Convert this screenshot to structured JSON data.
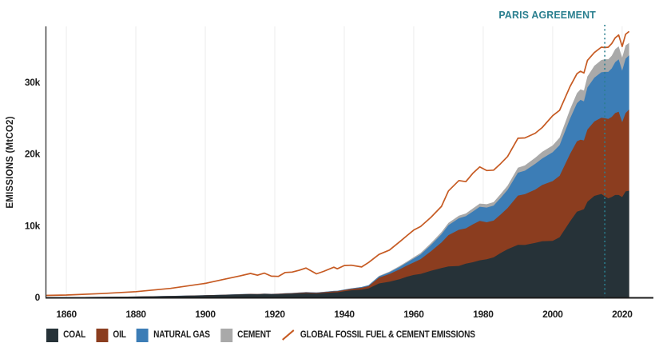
{
  "chart": {
    "y_axis_title": "EMISSIONS (MtCO2)",
    "annotation_label": "PARIS AGREEMENT",
    "annotation_year": 2015,
    "colors": {
      "coal": "#263238",
      "oil": "#8b3d1f",
      "natural_gas": "#3c7db6",
      "cement": "#a9a9a9",
      "total_line": "#c65a22",
      "paris_accent": "#2a7f8f",
      "grid": "#ececec",
      "axis": "#1c1c1c",
      "tick_text": "#1c1c1c"
    }
  },
  "legend": {
    "items": [
      {
        "label": "COAL",
        "swatch": "square",
        "color": "#263238"
      },
      {
        "label": "OIL",
        "swatch": "square",
        "color": "#8b3d1f"
      },
      {
        "label": "NATURAL GAS",
        "swatch": "square",
        "color": "#3c7db6"
      },
      {
        "label": "CEMENT",
        "swatch": "square",
        "color": "#a9a9a9"
      },
      {
        "label": "GLOBAL FOSSIL FUEL & CEMENT EMISSIONS",
        "swatch": "line",
        "color": "#c65a22"
      }
    ]
  },
  "chart_data": {
    "type": "area",
    "stacked": true,
    "title": "",
    "xlabel": "",
    "ylabel": "EMISSIONS (MtCO2)",
    "xlim": [
      1854,
      2029
    ],
    "ylim": [
      0,
      37800
    ],
    "x_ticks": [
      1860,
      1880,
      1900,
      1920,
      1940,
      1960,
      1980,
      2000,
      2020
    ],
    "y_ticks": [
      {
        "value": 0,
        "label": "0"
      },
      {
        "value": 10000,
        "label": "10k"
      },
      {
        "value": 20000,
        "label": "20k"
      },
      {
        "value": 30000,
        "label": "30k"
      }
    ],
    "grid": "vertical-only",
    "legend_position": "bottom",
    "annotation": {
      "label": "PARIS AGREEMENT",
      "x": 2015,
      "style": "dashed-vertical-line",
      "color": "#2a7f8f"
    },
    "x": [
      1854,
      1860,
      1870,
      1880,
      1890,
      1900,
      1905,
      1910,
      1913,
      1915,
      1917,
      1919,
      1921,
      1923,
      1925,
      1927,
      1929,
      1932,
      1934,
      1937,
      1938,
      1940,
      1942,
      1945,
      1947,
      1950,
      1953,
      1956,
      1958,
      1960,
      1962,
      1965,
      1968,
      1970,
      1973,
      1975,
      1977,
      1979,
      1981,
      1983,
      1985,
      1987,
      1990,
      1992,
      1995,
      1997,
      2000,
      2002,
      2005,
      2007,
      2008,
      2009,
      2010,
      2012,
      2014,
      2015,
      2016,
      2017,
      2018,
      2019,
      2020,
      2021,
      2022
    ],
    "series": [
      {
        "name": "COAL",
        "type": "area",
        "color": "#263238",
        "values": [
          20,
          40,
          65,
          115,
          190,
          285,
          350,
          420,
          460,
          440,
          470,
          445,
          450,
          500,
          520,
          560,
          600,
          550,
          610,
          700,
          710,
          860,
          990,
          1090,
          1260,
          1950,
          2190,
          2550,
          2890,
          3130,
          3280,
          3720,
          4090,
          4310,
          4390,
          4720,
          4910,
          5170,
          5320,
          5590,
          6190,
          6720,
          7330,
          7320,
          7610,
          7840,
          7890,
          8390,
          10590,
          11960,
          12130,
          12310,
          13340,
          14160,
          14430,
          14110,
          13820,
          14010,
          14280,
          14280,
          13990,
          14780,
          14870
        ]
      },
      {
        "name": "OIL",
        "type": "area",
        "color": "#8b3d1f",
        "values": [
          0,
          2,
          4,
          10,
          12,
          14,
          15,
          20,
          26,
          28,
          33,
          38,
          52,
          63,
          70,
          84,
          100,
          99,
          113,
          144,
          151,
          172,
          190,
          259,
          315,
          810,
          1070,
          1390,
          1550,
          1750,
          2060,
          2740,
          3570,
          4380,
          5040,
          4910,
          5280,
          5500,
          5160,
          5120,
          5360,
          5740,
          6880,
          7070,
          7430,
          7840,
          8330,
          8570,
          9410,
          9810,
          9870,
          9590,
          10080,
          10380,
          10630,
          10880,
          11070,
          11170,
          11430,
          11620,
          10440,
          10930,
          11330
        ]
      },
      {
        "name": "NATURAL GAS",
        "type": "area",
        "color": "#3c7db6",
        "values": [
          0,
          0,
          1,
          3,
          6,
          8,
          10,
          12,
          14,
          14,
          16,
          16,
          20,
          24,
          27,
          32,
          40,
          37,
          43,
          55,
          58,
          65,
          75,
          95,
          115,
          170,
          245,
          335,
          410,
          540,
          645,
          870,
          1150,
          1390,
          1610,
          1700,
          1790,
          1970,
          2050,
          2100,
          2320,
          2540,
          3190,
          3280,
          3590,
          3700,
          4030,
          4280,
          4930,
          5320,
          5550,
          5450,
          5860,
          6110,
          6340,
          6470,
          6570,
          6760,
          7090,
          7290,
          7190,
          7580,
          7580
        ]
      },
      {
        "name": "CEMENT",
        "type": "area",
        "color": "#a9a9a9",
        "values": [
          0,
          0,
          0,
          0,
          0,
          0,
          0,
          5,
          5,
          5,
          6,
          6,
          7,
          8,
          9,
          10,
          11,
          10,
          12,
          15,
          16,
          17,
          19,
          16,
          25,
          70,
          95,
          125,
          150,
          185,
          212,
          260,
          297,
          320,
          365,
          375,
          415,
          455,
          470,
          495,
          545,
          590,
          690,
          740,
          860,
          930,
          950,
          1050,
          1280,
          1400,
          1460,
          1500,
          1540,
          1650,
          1710,
          1760,
          1760,
          1760,
          1820,
          1820,
          1820,
          1870,
          1720
        ]
      },
      {
        "name": "GLOBAL FOSSIL FUEL & CEMENT EMISSIONS",
        "type": "line",
        "color": "#c65a22",
        "values": [
          275,
          340,
          540,
          800,
          1265,
          1965,
          2485,
          3005,
          3345,
          3105,
          3395,
          2965,
          2935,
          3480,
          3535,
          3780,
          4105,
          3290,
          3625,
          4215,
          3995,
          4445,
          4495,
          4245,
          4870,
          6000,
          6600,
          7780,
          8600,
          9390,
          9900,
          11200,
          12700,
          14850,
          16300,
          16150,
          17300,
          18200,
          17700,
          17750,
          18650,
          19650,
          22200,
          22250,
          22900,
          23700,
          25350,
          26100,
          29400,
          31200,
          31550,
          31300,
          33050,
          34150,
          34900,
          34850,
          34900,
          35400,
          36200,
          36600,
          35000,
          36700,
          37100
        ]
      }
    ]
  }
}
